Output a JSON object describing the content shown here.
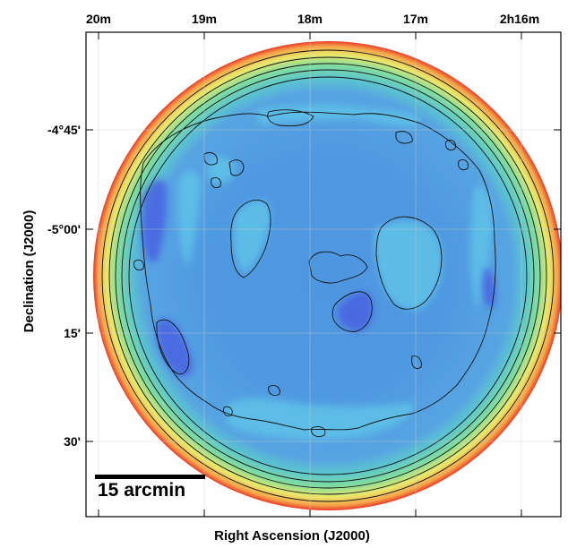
{
  "figure": {
    "x_axis_label": "Right Ascension (J2000)",
    "y_axis_label": "Declination (J2000)",
    "x_ticks": [
      "20m",
      "19m",
      "18m",
      "17m",
      "2h16m"
    ],
    "y_ticks": [
      "-4°45'",
      "-5°00'",
      "15'",
      "30'"
    ],
    "scalebar_label": "15 arcmin"
  },
  "colors": {
    "edge": "#e8231f",
    "rim_orange": "#f5a34a",
    "rim_yellow": "#e9e86a",
    "rim_green": "#64d29a",
    "field_cyan": "#55b8e6",
    "field_blue": "#4f96e0",
    "deep_blue": "#4a60e0",
    "contour": "#111111"
  }
}
